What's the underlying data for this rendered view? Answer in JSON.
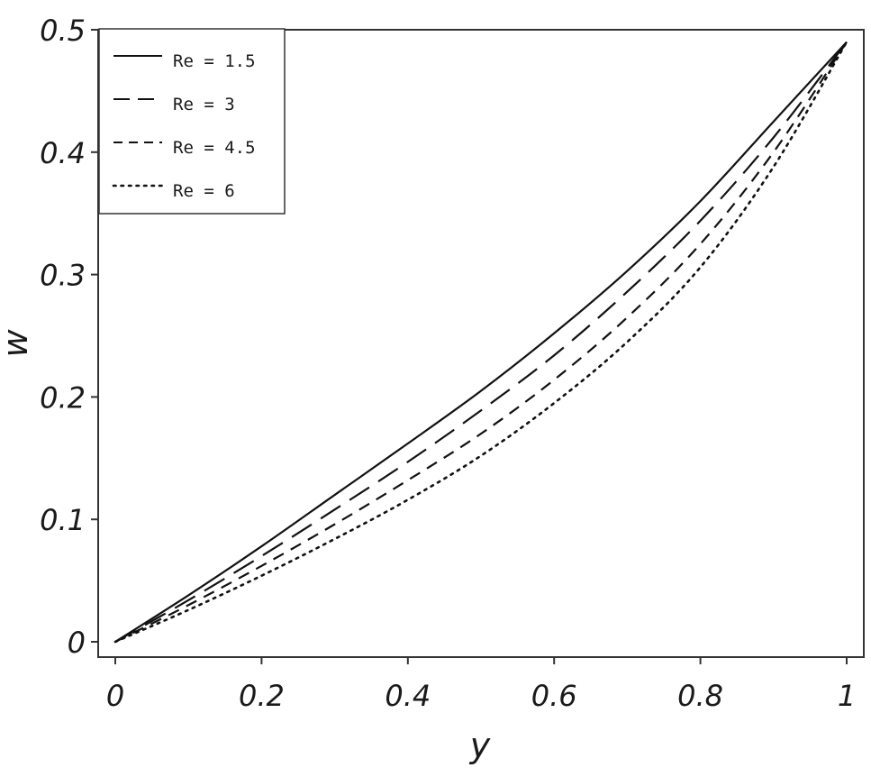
{
  "chart_data": {
    "type": "line",
    "xlabel": "y",
    "ylabel": "w",
    "xlim": [
      0,
      1
    ],
    "ylim": [
      0,
      0.5
    ],
    "x_ticks": [
      "0",
      "0.2",
      "0.4",
      "0.6",
      "0.8",
      "1"
    ],
    "y_ticks": [
      "0",
      "0.1",
      "0.2",
      "0.3",
      "0.4",
      "0.5"
    ],
    "grid": false,
    "legend_position": "top-left",
    "x": [
      0,
      0.1,
      0.2,
      0.3,
      0.4,
      0.5,
      0.6,
      0.7,
      0.8,
      0.9,
      1.0
    ],
    "series": [
      {
        "name": "Re = 1.5",
        "style": "solid",
        "values": [
          0,
          0.038,
          0.078,
          0.12,
          0.162,
          0.205,
          0.252,
          0.303,
          0.36,
          0.425,
          0.49
        ]
      },
      {
        "name": "Re = 3",
        "style": "long-dash",
        "values": [
          0,
          0.034,
          0.07,
          0.108,
          0.147,
          0.189,
          0.234,
          0.286,
          0.344,
          0.412,
          0.49
        ]
      },
      {
        "name": "Re = 4.5",
        "style": "short-dash",
        "values": [
          0,
          0.03,
          0.062,
          0.096,
          0.132,
          0.17,
          0.214,
          0.265,
          0.325,
          0.4,
          0.49
        ]
      },
      {
        "name": "Re = 6",
        "style": "dotted",
        "values": [
          0,
          0.026,
          0.054,
          0.084,
          0.116,
          0.152,
          0.195,
          0.245,
          0.306,
          0.388,
          0.49
        ]
      }
    ]
  }
}
